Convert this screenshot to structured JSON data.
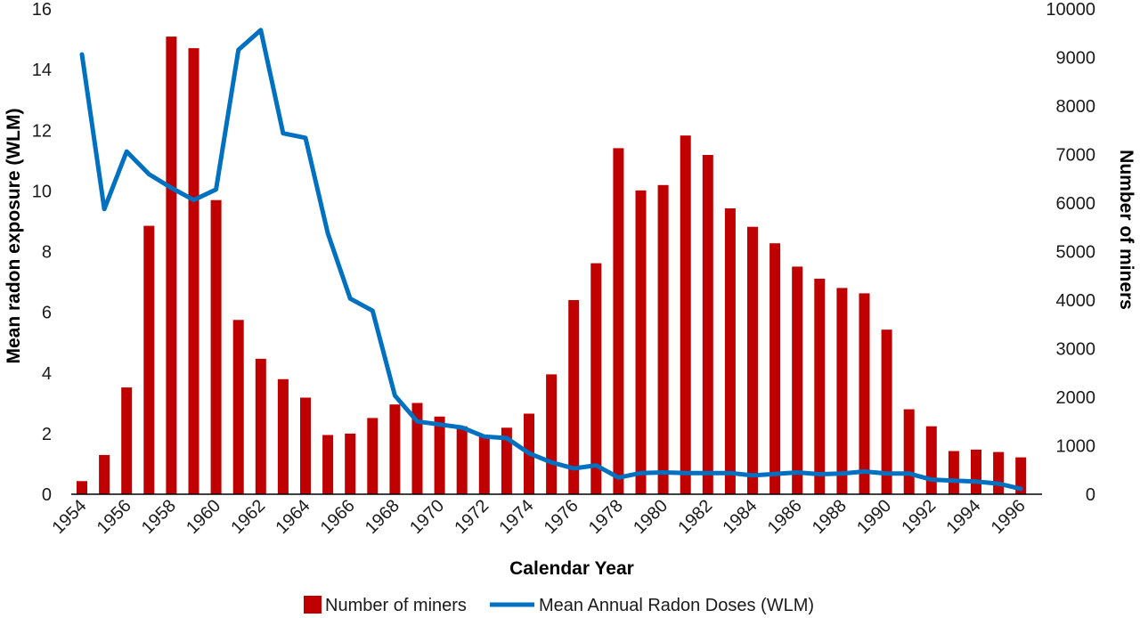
{
  "chart_data": {
    "type": "bar",
    "title": "",
    "xlabel": "Calendar Year",
    "ylabel_left": "Mean radon exposure (WLM)",
    "ylabel_right": "Number of miners",
    "ylim_left": [
      0,
      16
    ],
    "ylim_right": [
      0,
      10000
    ],
    "yticks_left": [
      0,
      2,
      4,
      6,
      8,
      10,
      12,
      14,
      16
    ],
    "yticks_right": [
      0,
      1000,
      2000,
      3000,
      4000,
      5000,
      6000,
      7000,
      8000,
      9000,
      10000
    ],
    "grid": false,
    "legend_position": "bottom",
    "years": [
      1954,
      1955,
      1956,
      1957,
      1958,
      1959,
      1960,
      1961,
      1962,
      1963,
      1964,
      1965,
      1966,
      1967,
      1968,
      1969,
      1970,
      1971,
      1972,
      1973,
      1974,
      1975,
      1976,
      1977,
      1978,
      1979,
      1980,
      1981,
      1982,
      1983,
      1984,
      1985,
      1986,
      1987,
      1988,
      1989,
      1990,
      1991,
      1992,
      1993,
      1994,
      1995,
      1996
    ],
    "x_tick_labels": [
      "1954",
      "1956",
      "1958",
      "1960",
      "1962",
      "1964",
      "1966",
      "1968",
      "1970",
      "1972",
      "1974",
      "1976",
      "1978",
      "1980",
      "1982",
      "1984",
      "1986",
      "1988",
      "1990",
      "1992",
      "1994",
      "1996"
    ],
    "series": [
      {
        "name": "Number of miners",
        "type": "bar",
        "axis": "right",
        "color": "#c00000",
        "values": [
          270,
          810,
          2200,
          5530,
          9430,
          9190,
          6060,
          3590,
          2790,
          2370,
          1990,
          1220,
          1250,
          1570,
          1850,
          1880,
          1600,
          1400,
          1220,
          1370,
          1660,
          2470,
          4000,
          4760,
          7130,
          6260,
          6370,
          7390,
          6990,
          5890,
          5510,
          5170,
          4690,
          4440,
          4250,
          4140,
          3390,
          1750,
          1400,
          890,
          920,
          870,
          760
        ]
      },
      {
        "name": "Mean Annual Radon Doses (WLM)",
        "type": "line",
        "axis": "left",
        "color": "#0070c0",
        "values": [
          14.5,
          9.4,
          11.3,
          10.55,
          10.1,
          9.7,
          10.05,
          14.65,
          15.3,
          11.9,
          11.75,
          8.6,
          6.45,
          6.05,
          3.25,
          2.4,
          2.3,
          2.2,
          1.9,
          1.85,
          1.35,
          1.05,
          0.85,
          0.95,
          0.55,
          0.7,
          0.72,
          0.7,
          0.7,
          0.7,
          0.62,
          0.67,
          0.72,
          0.66,
          0.68,
          0.75,
          0.68,
          0.68,
          0.48,
          0.45,
          0.42,
          0.35,
          0.18
        ]
      }
    ]
  }
}
